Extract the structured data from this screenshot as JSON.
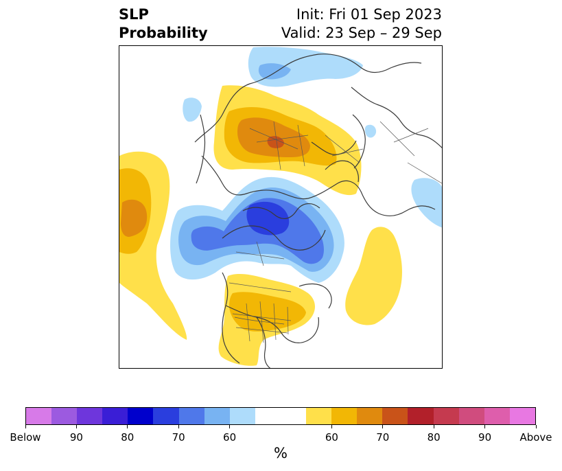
{
  "title": {
    "left_line1": "SLP",
    "left_line2": "Probability",
    "right_line1": "Init: Fri 01 Sep 2023",
    "right_line2": "Valid: 23 Sep – 29 Sep"
  },
  "colorbar": {
    "unit_label": "%",
    "tick_labels": [
      "Below",
      "90",
      "80",
      "70",
      "60",
      "60",
      "70",
      "80",
      "90",
      "Above"
    ],
    "colors": [
      "#d77ae8",
      "#9c5ae0",
      "#6e36dc",
      "#3a1ed6",
      "#0000cc",
      "#2a3ede",
      "#4f78ea",
      "#78b3f2",
      "#aedcfb",
      "#ffffff",
      "#ffe04a",
      "#f2b705",
      "#e08a0e",
      "#c95319",
      "#b2202a",
      "#c53a4f",
      "#d04c7e",
      "#de5eac",
      "#e878e2"
    ]
  },
  "map": {
    "projection": "north-polar-stereographic",
    "variable": "SLP",
    "colors": {
      "blue_light": "#aedcfb",
      "blue_mid": "#78b3f2",
      "blue_dark": "#4f78ea",
      "blue_deep": "#2a3ede",
      "yellow": "#ffe04a",
      "orange": "#f2b705",
      "dark_orange": "#e08a0e",
      "red_orange": "#c95319",
      "coast": "#3a3a3a"
    }
  }
}
